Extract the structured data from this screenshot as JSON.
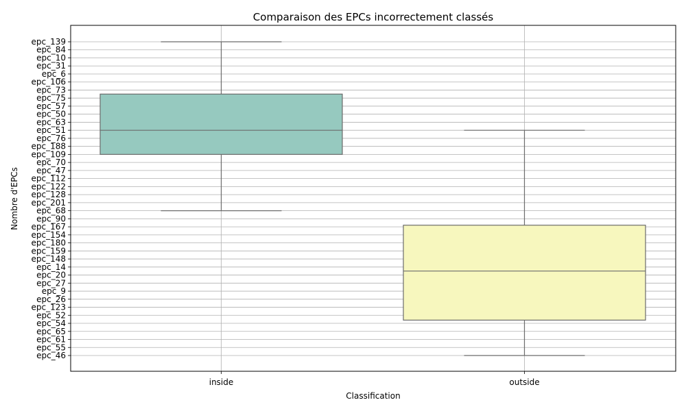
{
  "chart_data": {
    "type": "box",
    "title": "Comparaison des EPCs incorrectement classés",
    "xlabel": "Classification",
    "ylabel": "Nombre d'EPCs",
    "y_categories": [
      "epc_139",
      "epc_84",
      "epc_10",
      "epc_31",
      "epc_6",
      "epc_106",
      "epc_73",
      "epc_75",
      "epc_57",
      "epc_50",
      "epc_63",
      "epc_51",
      "epc_76",
      "epc_188",
      "epc_109",
      "epc_70",
      "epc_47",
      "epc_112",
      "epc_122",
      "epc_128",
      "epc_201",
      "epc_68",
      "epc_90",
      "epc_167",
      "epc_154",
      "epc_180",
      "epc_159",
      "epc_148",
      "epc_14",
      "epc_20",
      "epc_27",
      "epc_9",
      "epc_26",
      "epc_123",
      "epc_52",
      "epc_54",
      "epc_65",
      "epc_61",
      "epc_55",
      "epc_46"
    ],
    "x_categories": [
      "inside",
      "outside"
    ],
    "grid": true,
    "boxes": [
      {
        "category": "inside",
        "whisker_low": 0,
        "q1": 6.5,
        "median": 11,
        "q3": 14,
        "whisker_high": 21,
        "color": "#96c9bf"
      },
      {
        "category": "outside",
        "whisker_low": 11,
        "q1": 22.8,
        "median": 28.5,
        "q3": 34.6,
        "whisker_high": 39,
        "color": "#f7f7be"
      }
    ]
  }
}
